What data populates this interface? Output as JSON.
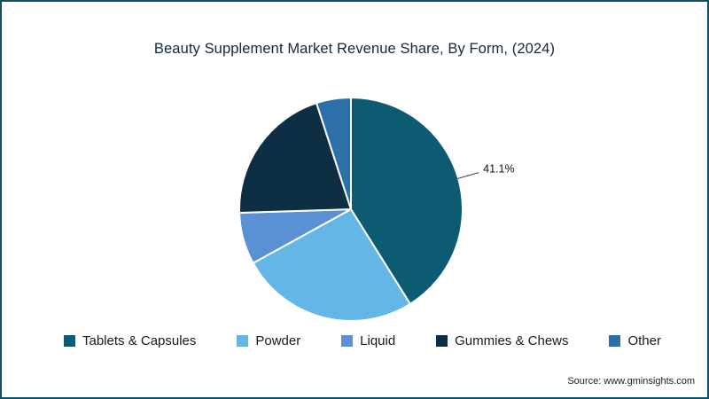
{
  "chart_data": {
    "type": "pie",
    "title": "Beauty Supplement Market Revenue Share, By Form, (2024)",
    "labels": [
      "Tablets & Capsules",
      "Powder",
      "Liquid",
      "Gummies & Chews",
      "Other"
    ],
    "values": [
      41.1,
      25.9,
      7.5,
      20.5,
      5.0
    ],
    "units": "%",
    "colors": [
      "#0d5a73",
      "#63b6e6",
      "#5a91d4",
      "#0e2e44",
      "#2d6fa8"
    ],
    "start_angle_deg": 0,
    "direction": "clockwise",
    "data_labels": [
      {
        "slice": 0,
        "text": "41.1%"
      }
    ],
    "legend_position": "bottom"
  },
  "footer": {
    "source": "Source: www.gminsights.com"
  },
  "accent_border_color": "#0f516b"
}
